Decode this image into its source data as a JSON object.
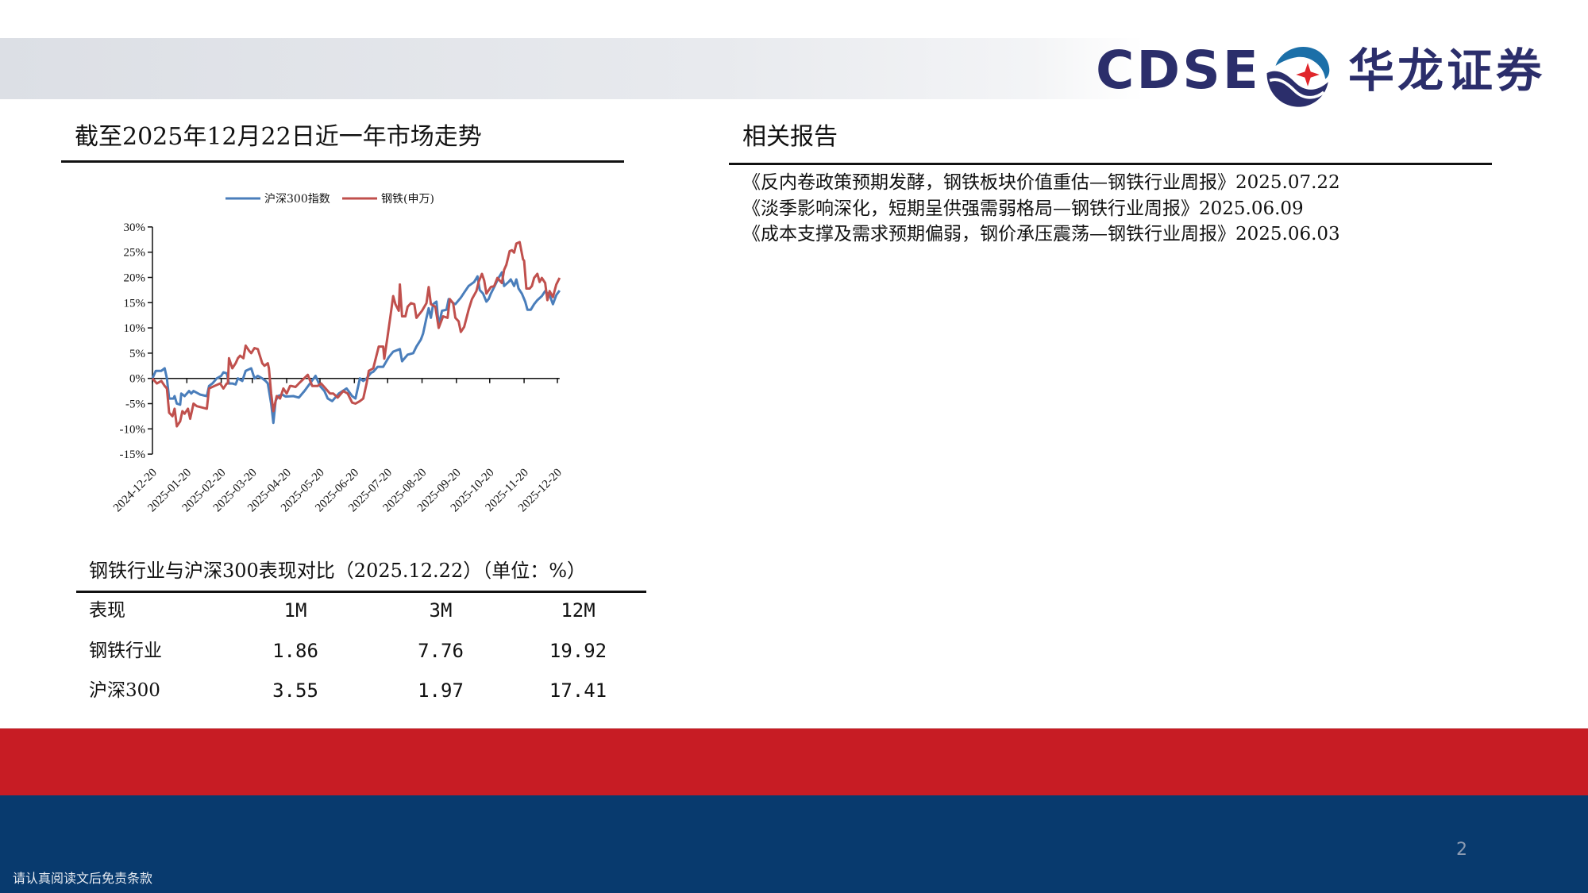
{
  "header": {
    "logo_en": "CDSE",
    "logo_cn": "华龙证券",
    "logo_colors": {
      "text": "#2B2E6B",
      "swoosh": "#1B6FA8",
      "star": "#E0262B"
    }
  },
  "market_section": {
    "title": "截至2025年12月22日近一年市场走势"
  },
  "chart_data": {
    "type": "line",
    "title": "截至2025年12月22日近一年市场走势",
    "xlabel": "",
    "ylabel": "",
    "x_unit": "days since 2024-12-20",
    "ylim": [
      -15,
      30
    ],
    "xlim": [
      0,
      367
    ],
    "grid": false,
    "legend_position": "top",
    "y_ticks": [
      "30%",
      "25%",
      "20%",
      "15%",
      "10%",
      "5%",
      "0%",
      "-5%",
      "-10%",
      "-15%"
    ],
    "y_tick_values": [
      30,
      25,
      20,
      15,
      10,
      5,
      0,
      -5,
      -10,
      -15
    ],
    "x_ticks": [
      "2024-12-20",
      "2025-01-20",
      "2025-02-20",
      "2025-03-20",
      "2025-04-20",
      "2025-05-20",
      "2025-06-20",
      "2025-07-20",
      "2025-08-20",
      "2025-09-20",
      "2025-10-20",
      "2025-11-20",
      "2025-12-20"
    ],
    "x_tick_days": [
      0,
      31,
      62,
      90,
      121,
      151,
      182,
      212,
      243,
      274,
      304,
      335,
      365
    ],
    "series": [
      {
        "name": "沪深300指数",
        "color": "#4A7EBB",
        "points": [
          [
            0,
            0
          ],
          [
            3,
            1.5
          ],
          [
            8,
            1.5
          ],
          [
            11,
            2
          ],
          [
            13,
            0
          ],
          [
            15,
            -4
          ],
          [
            19,
            -4
          ],
          [
            20,
            -3.5
          ],
          [
            22,
            -5
          ],
          [
            25,
            -5.2
          ],
          [
            26,
            -3
          ],
          [
            29,
            -3.5
          ],
          [
            33,
            -2.5
          ],
          [
            35,
            -3
          ],
          [
            37,
            -2.5
          ],
          [
            43,
            -3.2
          ],
          [
            49,
            -3.5
          ],
          [
            51,
            -1.5
          ],
          [
            54,
            -1
          ],
          [
            58,
            0
          ],
          [
            62,
            0.5
          ],
          [
            64,
            1.2
          ],
          [
            67,
            1
          ],
          [
            69,
            -1
          ],
          [
            72,
            -1
          ],
          [
            75,
            -1.2
          ],
          [
            77,
            0
          ],
          [
            81,
            -0.5
          ],
          [
            84,
            1.5
          ],
          [
            87,
            1.8
          ],
          [
            89,
            2
          ],
          [
            92,
            0
          ],
          [
            95,
            0.5
          ],
          [
            99,
            0
          ],
          [
            102,
            -0.5
          ],
          [
            104,
            -1
          ],
          [
            107,
            -5
          ],
          [
            109,
            -8.8
          ],
          [
            111,
            -4.5
          ],
          [
            113,
            -3.5
          ],
          [
            117,
            -3.2
          ],
          [
            120,
            -3.6
          ],
          [
            127,
            -3.5
          ],
          [
            132,
            -3.8
          ],
          [
            137,
            -2.5
          ],
          [
            142,
            -1
          ],
          [
            147,
            0.5
          ],
          [
            151,
            -1.5
          ],
          [
            155,
            -2.5
          ],
          [
            158,
            -4
          ],
          [
            162,
            -4.5
          ],
          [
            168,
            -3
          ],
          [
            175,
            -2
          ],
          [
            180,
            -3.5
          ],
          [
            183,
            -4
          ],
          [
            187,
            0
          ],
          [
            190,
            -0.5
          ],
          [
            193,
            0
          ],
          [
            197,
            1.1
          ],
          [
            199,
            1.3
          ],
          [
            203,
            2.3
          ],
          [
            208,
            2.3
          ],
          [
            213,
            4.2
          ],
          [
            217,
            5.3
          ],
          [
            223,
            5.8
          ],
          [
            225,
            3.4
          ],
          [
            230,
            4.7
          ],
          [
            235,
            5
          ],
          [
            238,
            6.3
          ],
          [
            242,
            7.7
          ],
          [
            244,
            8.9
          ],
          [
            247,
            12
          ],
          [
            249,
            13.9
          ],
          [
            251,
            12
          ],
          [
            253,
            14.7
          ],
          [
            256,
            15.2
          ],
          [
            258,
            10.5
          ],
          [
            261,
            13.4
          ],
          [
            265,
            13.6
          ],
          [
            267,
            15.7
          ],
          [
            271,
            14.9
          ],
          [
            273,
            14.7
          ],
          [
            278,
            16
          ],
          [
            281,
            17
          ],
          [
            285,
            18.3
          ],
          [
            290,
            19.1
          ],
          [
            293,
            20.2
          ],
          [
            295,
            17.5
          ],
          [
            298,
            16.8
          ],
          [
            301,
            15.2
          ],
          [
            303,
            15.7
          ],
          [
            305,
            16.8
          ],
          [
            308,
            18.1
          ],
          [
            312,
            19.9
          ],
          [
            315,
            21
          ],
          [
            317,
            18.3
          ],
          [
            321,
            19.1
          ],
          [
            323,
            19.6
          ],
          [
            326,
            18.3
          ],
          [
            328,
            19.6
          ],
          [
            330,
            17.8
          ],
          [
            333,
            16.8
          ],
          [
            336,
            15.2
          ],
          [
            338,
            13.6
          ],
          [
            341,
            13.6
          ],
          [
            344,
            14.7
          ],
          [
            347,
            15.5
          ],
          [
            351,
            16.3
          ],
          [
            354,
            17.3
          ],
          [
            358,
            16.5
          ],
          [
            361,
            14.7
          ],
          [
            364,
            16.5
          ],
          [
            367,
            17.41
          ]
        ]
      },
      {
        "name": "钢铁(申万)",
        "color": "#C0504D",
        "points": [
          [
            0,
            0
          ],
          [
            4,
            -1
          ],
          [
            8,
            -0.5
          ],
          [
            11,
            -1.5
          ],
          [
            13,
            -2
          ],
          [
            15,
            -6.8
          ],
          [
            18,
            -7.5
          ],
          [
            20,
            -6
          ],
          [
            22,
            -9.5
          ],
          [
            25,
            -8.5
          ],
          [
            27,
            -6.5
          ],
          [
            29,
            -7
          ],
          [
            32,
            -6
          ],
          [
            34,
            -8
          ],
          [
            37,
            -5
          ],
          [
            40,
            -5.5
          ],
          [
            49,
            -6
          ],
          [
            51,
            -2
          ],
          [
            56,
            -1.5
          ],
          [
            61,
            -1
          ],
          [
            64,
            -2
          ],
          [
            67,
            -1
          ],
          [
            68,
            -1
          ],
          [
            69,
            4
          ],
          [
            72,
            2
          ],
          [
            75,
            3
          ],
          [
            77,
            4
          ],
          [
            79,
            4.5
          ],
          [
            82,
            4
          ],
          [
            84,
            6.5
          ],
          [
            87,
            5.5
          ],
          [
            89,
            5
          ],
          [
            92,
            6
          ],
          [
            95,
            5.8
          ],
          [
            99,
            3
          ],
          [
            101,
            2.5
          ],
          [
            104,
            3
          ],
          [
            105,
            2
          ],
          [
            107,
            -3
          ],
          [
            109,
            -6.5
          ],
          [
            112,
            -3.5
          ],
          [
            115,
            -4
          ],
          [
            118,
            -2
          ],
          [
            121,
            -3
          ],
          [
            124,
            -1.5
          ],
          [
            125,
            -1.5
          ],
          [
            129,
            -1.7
          ],
          [
            132,
            -1
          ],
          [
            140,
            0.7
          ],
          [
            144,
            -1.5
          ],
          [
            149,
            -1.5
          ],
          [
            152,
            -1
          ],
          [
            156,
            -2
          ],
          [
            160,
            -3
          ],
          [
            163,
            -3
          ],
          [
            167,
            -3.8
          ],
          [
            172,
            -2.5
          ],
          [
            176,
            -3
          ],
          [
            180,
            -4.8
          ],
          [
            183,
            -5
          ],
          [
            187,
            -4.5
          ],
          [
            190,
            -4
          ],
          [
            193,
            -1
          ],
          [
            195,
            1.5
          ],
          [
            199,
            2
          ],
          [
            201,
            3.7
          ],
          [
            204,
            6.3
          ],
          [
            208,
            6.3
          ],
          [
            209,
            3.9
          ],
          [
            212,
            8.4
          ],
          [
            215,
            13.1
          ],
          [
            217,
            16.3
          ],
          [
            219,
            14.7
          ],
          [
            222,
            13.4
          ],
          [
            223,
            18.6
          ],
          [
            225,
            12.3
          ],
          [
            228,
            12.3
          ],
          [
            230,
            14.2
          ],
          [
            233,
            14.9
          ],
          [
            236,
            14.7
          ],
          [
            238,
            12
          ],
          [
            243,
            13.4
          ],
          [
            247,
            14.9
          ],
          [
            249,
            18.1
          ],
          [
            251,
            14.7
          ],
          [
            255,
            14.2
          ],
          [
            258,
            10
          ],
          [
            262,
            12.3
          ],
          [
            266,
            12
          ],
          [
            268,
            15.7
          ],
          [
            271,
            14.9
          ],
          [
            273,
            12
          ],
          [
            276,
            11.3
          ],
          [
            278,
            9.2
          ],
          [
            281,
            10.2
          ],
          [
            285,
            13.6
          ],
          [
            288,
            15.7
          ],
          [
            292,
            17.3
          ],
          [
            294,
            19.1
          ],
          [
            297,
            20.7
          ],
          [
            299,
            19.4
          ],
          [
            301,
            16.8
          ],
          [
            305,
            18.1
          ],
          [
            308,
            18.3
          ],
          [
            311,
            19.9
          ],
          [
            315,
            18.9
          ],
          [
            317,
            21.5
          ],
          [
            319,
            22.5
          ],
          [
            322,
            25.2
          ],
          [
            324,
            25.4
          ],
          [
            326,
            24.9
          ],
          [
            328,
            26.7
          ],
          [
            331,
            27
          ],
          [
            334,
            23.6
          ],
          [
            335,
            23.3
          ],
          [
            337,
            17.8
          ],
          [
            340,
            17.8
          ],
          [
            342,
            18.3
          ],
          [
            344,
            19.9
          ],
          [
            347,
            20.7
          ],
          [
            349,
            19.1
          ],
          [
            351,
            19.9
          ],
          [
            354,
            18.9
          ],
          [
            356,
            15.5
          ],
          [
            358,
            17.3
          ],
          [
            361,
            16.1
          ],
          [
            364,
            18.6
          ],
          [
            367,
            19.92
          ]
        ]
      }
    ]
  },
  "reports": {
    "title": "相关报告",
    "items": [
      "《反内卷政策预期发酵，钢铁板块价值重估—钢铁行业周报》2025.07.22",
      "《淡季影响深化，短期呈供强需弱格局—钢铁行业周报》2025.06.09",
      "《成本支撑及需求预期偏弱，钢价承压震荡—钢铁行业周报》2025.06.03"
    ]
  },
  "performance_table": {
    "title": "钢铁行业与沪深300表现对比（2025.12.22）（单位：%）",
    "headers": [
      "表现",
      "1M",
      "3M",
      "12M"
    ],
    "rows": [
      [
        "钢铁行业",
        "1.86",
        "7.76",
        "19.92"
      ],
      [
        "沪深300",
        "3.55",
        "1.97",
        "17.41"
      ]
    ]
  },
  "footer": {
    "disclaimer": "请认真阅读文后免责条款",
    "page_number": "2",
    "colors": {
      "red_band": "#C71C24",
      "blue_band": "#083A6E"
    }
  }
}
